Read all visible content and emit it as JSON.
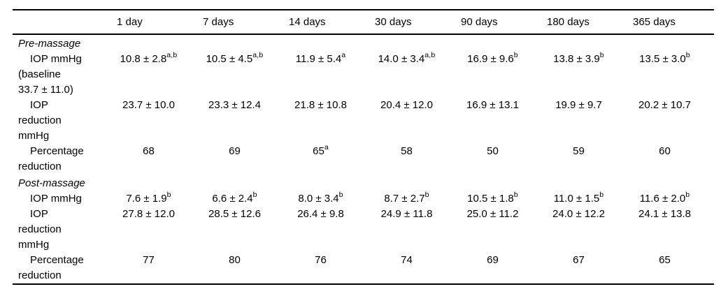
{
  "page": {
    "background": "#ffffff",
    "text_color": "#000000",
    "rule_color": "#000000"
  },
  "table": {
    "columns": [
      "",
      "1 day",
      "7 days",
      "14 days",
      "30 days",
      "90 days",
      "180 days",
      "365 days"
    ],
    "sections": [
      {
        "heading": "Pre-massage",
        "rows": [
          {
            "label": "IOP mmHg\n(baseline\n33.7 ± 11.0)",
            "size": "tall",
            "cells": [
              {
                "v": "10.8 ± 2.8",
                "sup": "a,b"
              },
              {
                "v": "10.5 ± 4.5",
                "sup": "a,b"
              },
              {
                "v": "11.9 ± 5.4",
                "sup": "a"
              },
              {
                "v": "14.0 ± 3.4",
                "sup": "a,b"
              },
              {
                "v": "16.9 ± 9.6",
                "sup": "b"
              },
              {
                "v": "13.8 ± 3.9",
                "sup": "b"
              },
              {
                "v": "13.5 ± 3.0",
                "sup": "b"
              }
            ]
          },
          {
            "label": "IOP\nreduction\nmmHg",
            "size": "tall",
            "cells": [
              {
                "v": "23.7 ± 10.0"
              },
              {
                "v": "23.3 ± 12.4"
              },
              {
                "v": "21.8 ± 10.8"
              },
              {
                "v": "20.4 ± 12.0"
              },
              {
                "v": "16.9 ± 13.1"
              },
              {
                "v": "19.9 ± 9.7"
              },
              {
                "v": "20.2 ± 10.7"
              }
            ]
          },
          {
            "label": "Percentage\nreduction",
            "size": "mid",
            "cells": [
              {
                "v": "68"
              },
              {
                "v": "69"
              },
              {
                "v": "65",
                "sup": "a"
              },
              {
                "v": "58"
              },
              {
                "v": "50"
              },
              {
                "v": "59"
              },
              {
                "v": "60"
              }
            ]
          }
        ]
      },
      {
        "heading": "Post-massage",
        "rows": [
          {
            "label": "IOP mmHg",
            "size": "short",
            "cells": [
              {
                "v": "7.6 ± 1.9",
                "sup": "b"
              },
              {
                "v": "6.6 ± 2.4",
                "sup": "b"
              },
              {
                "v": "8.0 ± 3.4",
                "sup": "b"
              },
              {
                "v": "8.7 ± 2.7",
                "sup": "b"
              },
              {
                "v": "10.5 ± 1.8",
                "sup": "b"
              },
              {
                "v": "11.0 ± 1.5",
                "sup": "b"
              },
              {
                "v": "11.6 ± 2.0",
                "sup": "b"
              }
            ]
          },
          {
            "label": "IOP\nreduction\nmmHg",
            "size": "tall",
            "cells": [
              {
                "v": "27.8 ± 12.0"
              },
              {
                "v": "28.5 ± 12.6"
              },
              {
                "v": "26.4 ± 9.8"
              },
              {
                "v": "24.9 ± 11.8"
              },
              {
                "v": "25.0 ± 11.2"
              },
              {
                "v": "24.0 ± 12.2"
              },
              {
                "v": "24.1 ± 13.8"
              }
            ]
          },
          {
            "label": "Percentage\nreduction",
            "size": "mid",
            "cells": [
              {
                "v": "77"
              },
              {
                "v": "80"
              },
              {
                "v": "76"
              },
              {
                "v": "74"
              },
              {
                "v": "69"
              },
              {
                "v": "67"
              },
              {
                "v": "65"
              }
            ]
          }
        ]
      }
    ]
  }
}
